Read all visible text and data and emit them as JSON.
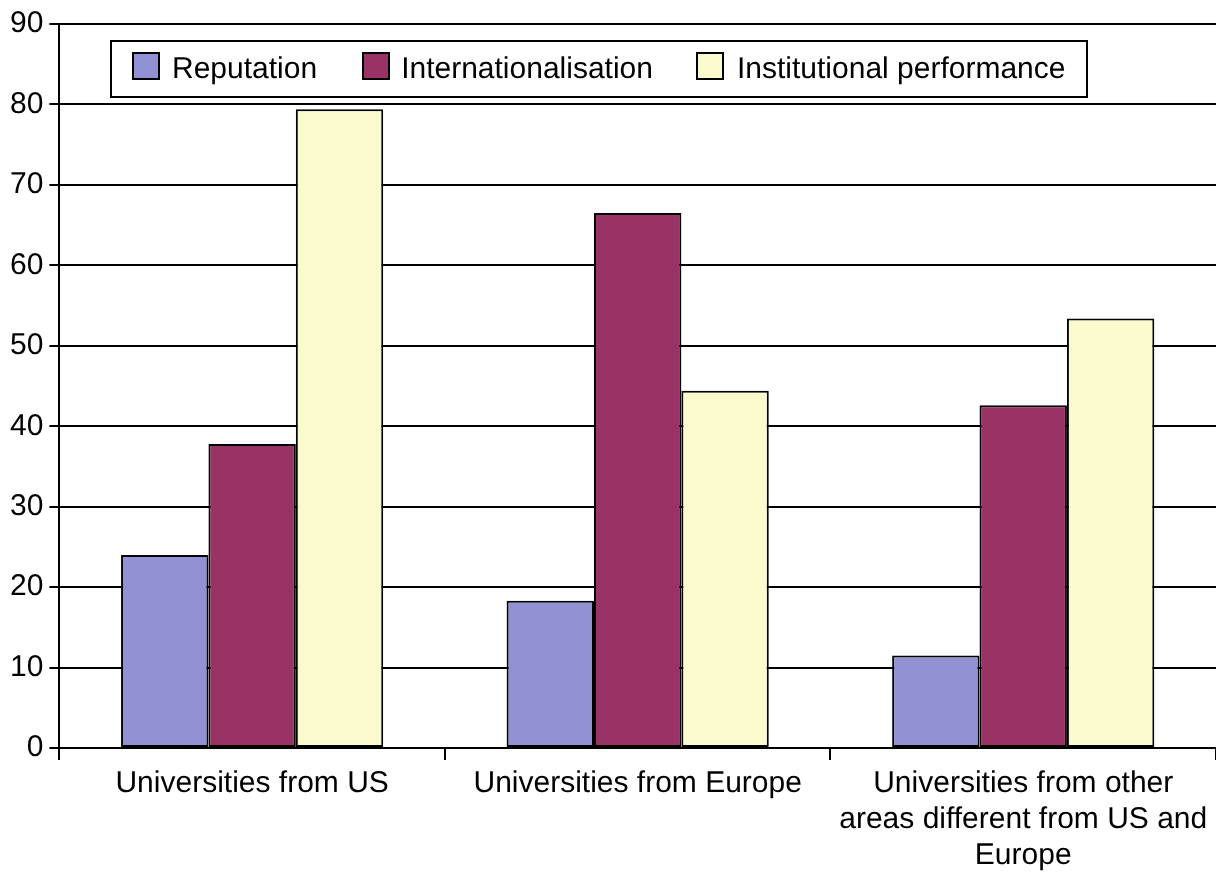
{
  "chart_data": {
    "type": "bar",
    "categories": [
      "Universities from US",
      "Universities from Europe",
      "Universities from other areas different from US and Europe"
    ],
    "series": [
      {
        "name": "Reputation",
        "color": "#9191d4",
        "values": [
          24,
          18.3,
          11.5
        ]
      },
      {
        "name": "Internationalisation",
        "color": "#993366",
        "values": [
          37.8,
          66.5,
          42.6
        ]
      },
      {
        "name": "Institutional performance",
        "color": "#fafacc",
        "values": [
          79.4,
          44.4,
          53.4
        ]
      }
    ],
    "ylim": [
      0,
      90
    ],
    "yticks": [
      0,
      10,
      20,
      30,
      40,
      50,
      60,
      70,
      80,
      90
    ],
    "grid": "y",
    "legend": "top"
  }
}
